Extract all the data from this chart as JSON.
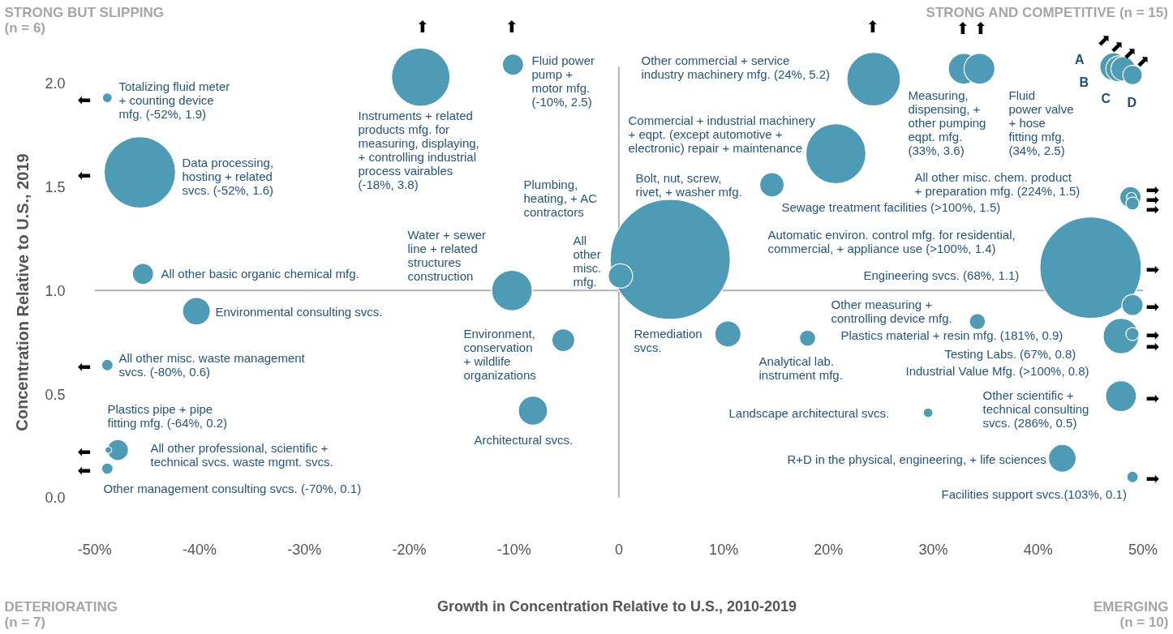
{
  "chart_data": {
    "type": "bubble",
    "xlabel": "Growth in Concentration Relative to U.S., 2010-2019",
    "ylabel": "Concentration Relative to U.S., 2019",
    "xlim": [
      -59,
      52.9
    ],
    "ylim": [
      -0.66,
      2.4
    ],
    "xticks": [
      {
        "value": -50,
        "label": "-50%"
      },
      {
        "value": -40,
        "label": "-40%"
      },
      {
        "value": -30,
        "label": "-30%"
      },
      {
        "value": -20,
        "label": "-20%"
      },
      {
        "value": -10,
        "label": "-10%"
      },
      0,
      {
        "value": 10,
        "label": "10%"
      },
      {
        "value": 20,
        "label": "20%"
      },
      {
        "value": 30,
        "label": "30%"
      },
      {
        "value": 40,
        "label": "40%"
      },
      {
        "value": 50,
        "label": "50%"
      }
    ],
    "yticks": [
      {
        "value": 0,
        "label": "0.0"
      },
      0.5,
      {
        "value": 1,
        "label": "1.0"
      },
      1.5,
      {
        "value": 2,
        "label": "2.0"
      }
    ],
    "grid": false,
    "ref_lines": [
      {
        "axis": "x",
        "value": 0,
        "color": "#b3b3b3"
      },
      {
        "axis": "y",
        "value": 1,
        "color": "#b3b3b3"
      }
    ],
    "series": [
      {
        "color": "#4e9bb5",
        "x": [
          -48.8,
          -45.7,
          -45.4,
          -40.3,
          -48.8,
          -47.8,
          -48.7,
          -48.8,
          -18.9,
          -10.1,
          -10.2,
          -5.3,
          -8.2,
          4.9,
          0.15,
          10.4,
          18.0,
          14.6,
          20.7,
          24.3,
          32.9,
          34.4,
          47.2,
          47.7,
          48.1,
          49.0,
          48.8,
          48.9,
          49.0,
          45.0,
          34.2,
          49.0,
          47.9,
          49.0,
          47.9,
          29.5,
          42.3,
          49.0
        ],
        "values": [
          1.93,
          1.57,
          1.08,
          0.9,
          0.64,
          0.23,
          0.23,
          0.14,
          2.03,
          2.09,
          1.0,
          0.76,
          0.42,
          1.15,
          1.07,
          0.79,
          0.77,
          1.51,
          1.66,
          2.02,
          2.07,
          2.07,
          2.08,
          2.07,
          2.07,
          2.04,
          1.45,
          1.45,
          1.42,
          1.11,
          0.85,
          0.93,
          0.78,
          0.79,
          0.49,
          0.41,
          0.19,
          0.1
        ],
        "sizes": [
          0.0066,
          0.354,
          0.031,
          0.053,
          0.009,
          0.031,
          0.003,
          0.009,
          0.237,
          0.031,
          0.114,
          0.036,
          0.059,
          1,
          0.041,
          0.047,
          0.018,
          0.041,
          0.25,
          0.199,
          0.066,
          0.066,
          0.053,
          0.047,
          0.041,
          0.026,
          0.031,
          0.0066,
          0.012,
          0.713,
          0.018,
          0.031,
          0.088,
          0.012,
          0.066,
          0.0066,
          0.053,
          0.009
        ]
      }
    ],
    "annotations": [
      "STRONG BUT SLIPPING\n(n = 6)",
      "STRONG AND COMPETITIVE (n = 15)",
      "DETERIORATING\n(n = 7)",
      "EMERGING\n(n = 10)",
      "Totalizing fluid meter\n+ counting device\nmfg. (-52%, 1.9)",
      "Data processing,\nhosting + related\nsvcs. (-52%, 1.6)",
      "All other basic organic chemical mfg.",
      "Environmental consulting svcs.",
      "All other misc. waste management\nsvcs. (-80%, 0.6)",
      "Plastics pipe + pipe\nfitting mfg. (-64%, 0.2)",
      "All other professional, scientific +\ntechnical svcs. waste mgmt. svcs.",
      "Other management consulting svcs. (-70%, 0.1)",
      "Instruments + related\nproducts mfg. for\nmeasuring, displaying,\n+ controlling industrial\nprocess vairables\n(-18%, 3.8)",
      "Fluid power\npump +\nmotor mfg.\n(-10%, 2.5)",
      "Water + sewer\nline + related\nstructures\nconstruction",
      "Environment,\nconservation\n+ wildlife\norganizations",
      "Architectural svcs.",
      "All\nother\nmisc.\nmfg.",
      "Plumbing,\nheating, + AC\ncontractors",
      "Remediation\nsvcs.",
      "Analytical lab.\ninstrument mfg.",
      "Bolt, nut, screw,\nrivet, + washer mfg.",
      "Commercial + industrial machinery\n+ eqpt. (except automotive +\nelectronic) repair + maintenance",
      "Other commercial + service\nindustry machinery mfg. (24%, 5.2)",
      "Measuring,\ndispensing, +\nother pumping\neqpt. mfg.\n(33%, 3.6)",
      "Fluid\npower valve\n+ hose\nfitting mfg.\n(34%, 2.5)",
      "A",
      "B",
      "C",
      "D",
      "All other misc. chem. product\n+ preparation mfg. (224%, 1.5)",
      "Sewage treatment facilities (>100%, 1.5)",
      "Automatic environ. control mfg. for residential,\ncommercial, + appliance use (>100%, 1.4)",
      "Engineering svcs. (68%, 1.1)",
      "Other measuring +\ncontrolling device mfg.",
      "Plastics material + resin mfg. (181%, 0.9)",
      "Testing Labs. (67%, 0.8)",
      "Industrial Value Mfg. (>100%, 0.8)",
      "Other scientific +\ntechnical consulting\nsvcs. (286%, 0.5)",
      "Landscape architectural svcs.",
      "R+D in the physical, engineering, + life sciences",
      "Facilities support svcs.(103%, 0.1)",
      "⬅",
      "⬅",
      "⬅",
      "⬅",
      "⬅",
      "⬆",
      "⬆",
      "⬆",
      "⬆",
      "⬆",
      "⬈",
      "⬈",
      "⬈",
      "⬈",
      "➡",
      "➡",
      "➡",
      "➡",
      "➡",
      "➡",
      "➡",
      "➡",
      "➡"
    ]
  }
}
